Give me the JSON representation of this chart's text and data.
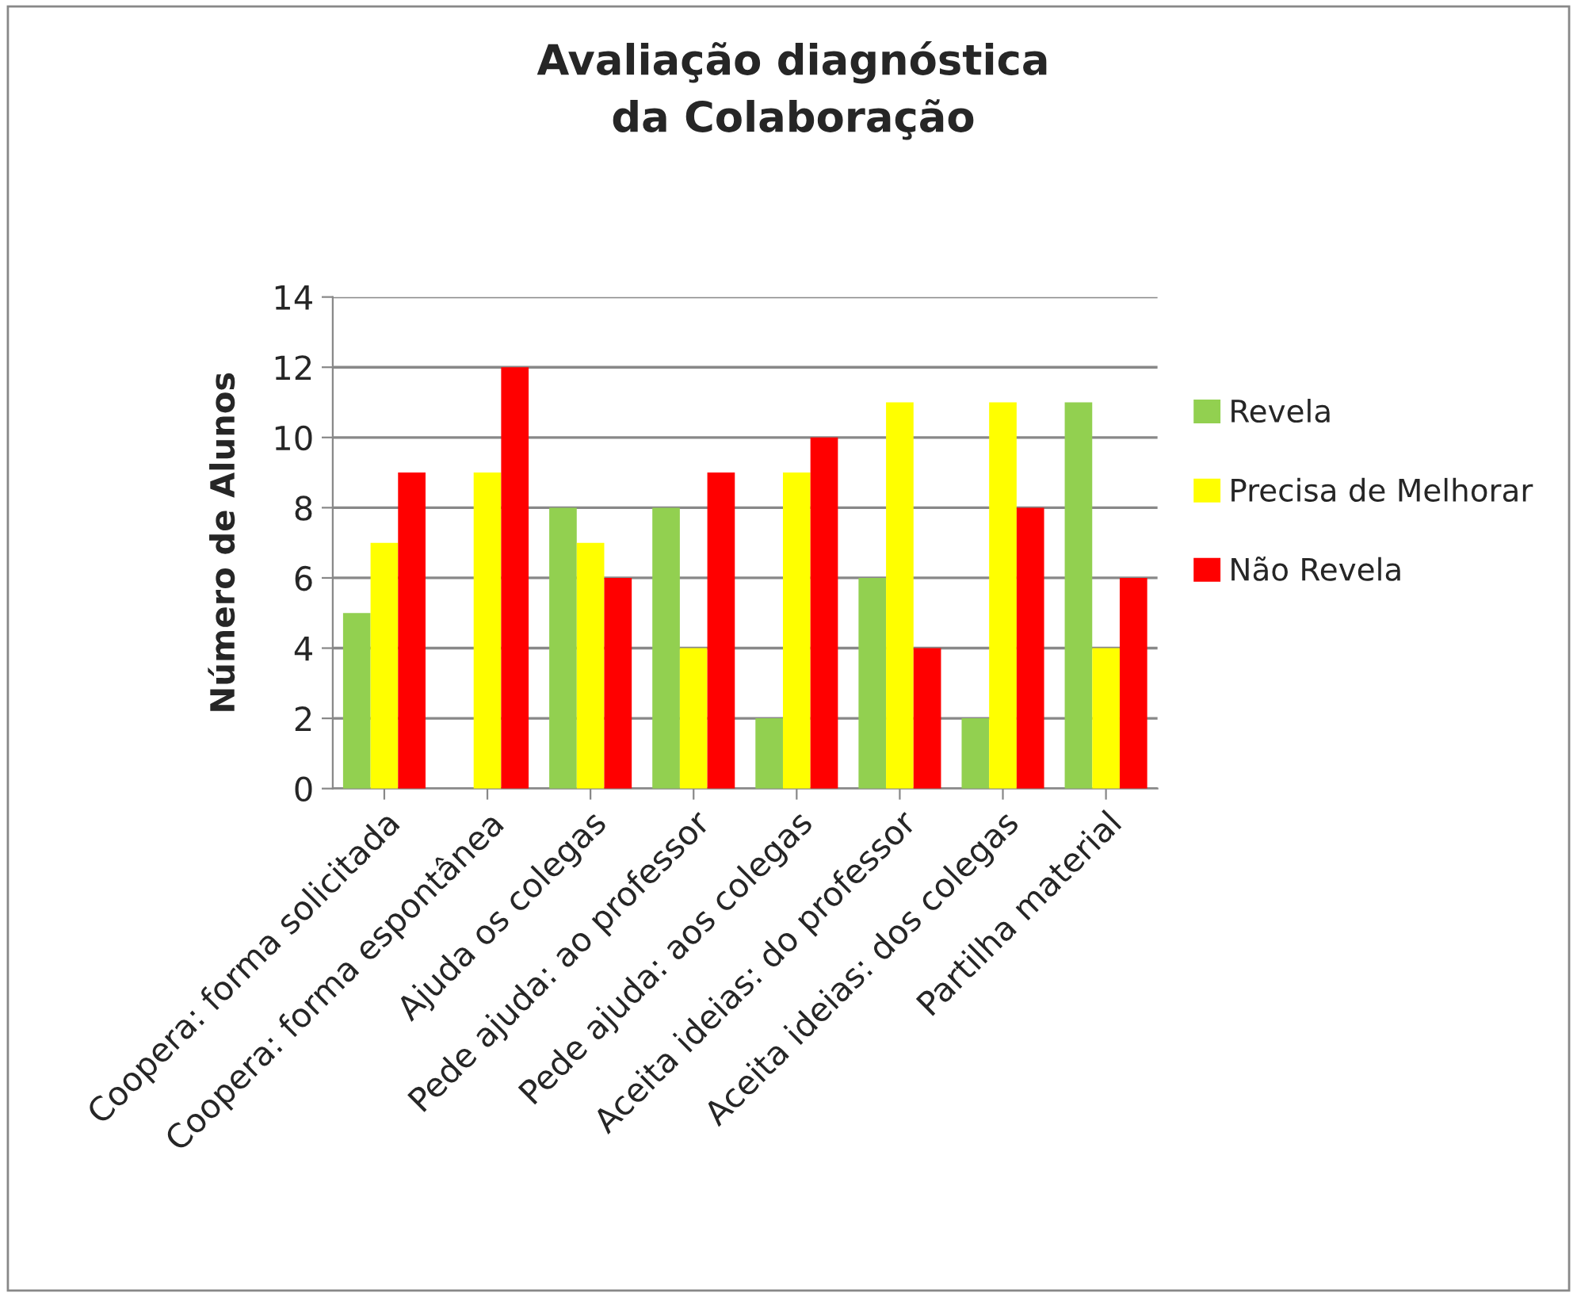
{
  "chart_data": {
    "type": "bar",
    "title": "Avaliação diagnóstica\nda Colaboração",
    "ylabel": "Número de Alunos",
    "categories": [
      "Coopera: forma solicitada",
      "Coopera: forma espontânea",
      "Ajuda os colegas",
      "Pede ajuda: ao professor",
      "Pede ajuda: aos colegas",
      "Aceita ideias: do professor",
      "Aceita ideias: dos colegas",
      "Partilha material"
    ],
    "series": [
      {
        "name": "Revela",
        "color": "#92d050",
        "values": [
          5,
          null,
          8,
          8,
          2,
          6,
          2,
          11
        ]
      },
      {
        "name": "Precisa de Melhorar",
        "color": "#ffff00",
        "values": [
          7,
          9,
          7,
          4,
          9,
          11,
          11,
          4
        ]
      },
      {
        "name": "Não Revela",
        "color": "#ff0000",
        "values": [
          9,
          12,
          6,
          9,
          10,
          4,
          8,
          6
        ]
      }
    ],
    "ylim": [
      0,
      14
    ],
    "yticks": [
      0,
      2,
      4,
      6,
      8,
      10,
      12,
      14
    ],
    "grid": "y",
    "legend": "right"
  }
}
